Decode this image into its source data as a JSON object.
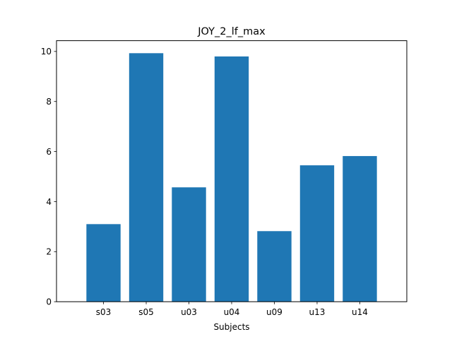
{
  "chart_data": {
    "type": "bar",
    "title": "JOY_2_lf_max",
    "xlabel": "Subjects",
    "ylabel": "",
    "categories": [
      "s03",
      "s05",
      "u03",
      "u04",
      "u09",
      "u13",
      "u14"
    ],
    "values": [
      3.1,
      9.93,
      4.57,
      9.8,
      2.82,
      5.45,
      5.82
    ],
    "ylim": [
      0,
      10.43
    ],
    "yticks": [
      0,
      2,
      4,
      6,
      8,
      10
    ],
    "grid": false,
    "legend": "none",
    "bar_color": "#1f77b4"
  }
}
